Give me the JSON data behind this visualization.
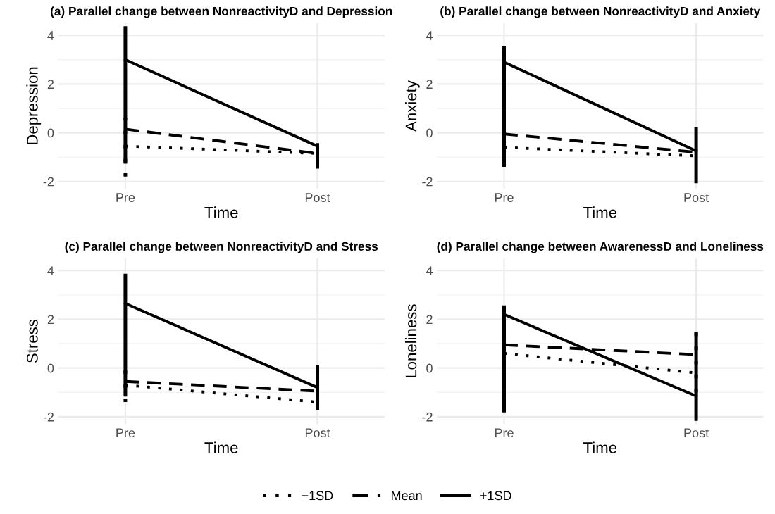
{
  "chart_data": [
    {
      "type": "line",
      "title": "(a) Parallel change between NonreactivityD and Depression",
      "xlabel": "Time",
      "ylabel": "Depression",
      "categories": [
        "Pre",
        "Post"
      ],
      "ylim": [
        -2.3,
        4.5
      ],
      "yticks": [
        -2,
        0,
        2,
        4
      ],
      "grid": true,
      "legend": "bottom",
      "series": [
        {
          "name": "−1SD",
          "color": "#000000",
          "line_style": "dotted",
          "values": [
            -0.55,
            -0.85
          ],
          "errors": [
            [
              -1.8,
              0.6
            ],
            null
          ]
        },
        {
          "name": "Mean",
          "color": "#000000",
          "line_style": "dashed",
          "values": [
            0.15,
            -0.85
          ]
        },
        {
          "name": "+1SD",
          "color": "#000000",
          "line_style": "solid",
          "values": [
            3.0,
            -0.55
          ],
          "errors": [
            [
              -1.2,
              4.3
            ],
            [
              -1.4,
              -0.5
            ]
          ]
        }
      ]
    },
    {
      "type": "line",
      "title": "(b) Parallel change between NonreactivityD and Anxiety",
      "xlabel": "Time",
      "ylabel": "Anxiety",
      "categories": [
        "Pre",
        "Post"
      ],
      "ylim": [
        -2.3,
        4.5
      ],
      "yticks": [
        -2,
        0,
        2,
        4
      ],
      "grid": true,
      "series": [
        {
          "name": "−1SD",
          "color": "#000000",
          "line_style": "dotted",
          "values": [
            -0.6,
            -0.95
          ],
          "errors": [
            [
              -1.4,
              0.2
            ],
            null
          ]
        },
        {
          "name": "Mean",
          "color": "#000000",
          "line_style": "dashed",
          "values": [
            -0.05,
            -0.8
          ]
        },
        {
          "name": "+1SD",
          "color": "#000000",
          "line_style": "solid",
          "values": [
            2.9,
            -0.75
          ],
          "errors": [
            [
              -1.3,
              3.5
            ],
            [
              -2.0,
              0.15
            ]
          ]
        }
      ]
    },
    {
      "type": "line",
      "title": "(c) Parallel change between NonreactivityD and Stress",
      "xlabel": "Time",
      "ylabel": "Stress",
      "categories": [
        "Pre",
        "Post"
      ],
      "ylim": [
        -2.3,
        4.5
      ],
      "yticks": [
        -2,
        0,
        2,
        4
      ],
      "grid": true,
      "series": [
        {
          "name": "−1SD",
          "color": "#000000",
          "line_style": "dotted",
          "values": [
            -0.7,
            -1.4
          ],
          "errors": [
            [
              -1.4,
              0.0
            ],
            null
          ]
        },
        {
          "name": "Mean",
          "color": "#000000",
          "line_style": "dashed",
          "values": [
            -0.55,
            -0.95
          ]
        },
        {
          "name": "+1SD",
          "color": "#000000",
          "line_style": "solid",
          "values": [
            2.65,
            -0.8
          ],
          "errors": [
            [
              -1.1,
              3.8
            ],
            [
              -1.65,
              0.05
            ]
          ]
        }
      ]
    },
    {
      "type": "line",
      "title": "(d) Parallel change between AwarenessD and Loneliness",
      "xlabel": "Time",
      "ylabel": "Loneliness",
      "categories": [
        "Pre",
        "Post"
      ],
      "ylim": [
        -2.3,
        4.5
      ],
      "yticks": [
        -2,
        0,
        2,
        4
      ],
      "grid": true,
      "series": [
        {
          "name": "−1SD",
          "color": "#000000",
          "line_style": "dotted",
          "values": [
            0.6,
            -0.2
          ],
          "errors": [
            null,
            [
              -1.0,
              1.7
            ]
          ]
        },
        {
          "name": "Mean",
          "color": "#000000",
          "line_style": "dashed",
          "values": [
            0.95,
            0.55
          ]
        },
        {
          "name": "+1SD",
          "color": "#000000",
          "line_style": "solid",
          "values": [
            2.2,
            -1.15
          ],
          "errors": [
            [
              -1.75,
              2.5
            ],
            [
              -2.1,
              1.4
            ]
          ]
        }
      ]
    }
  ]
}
